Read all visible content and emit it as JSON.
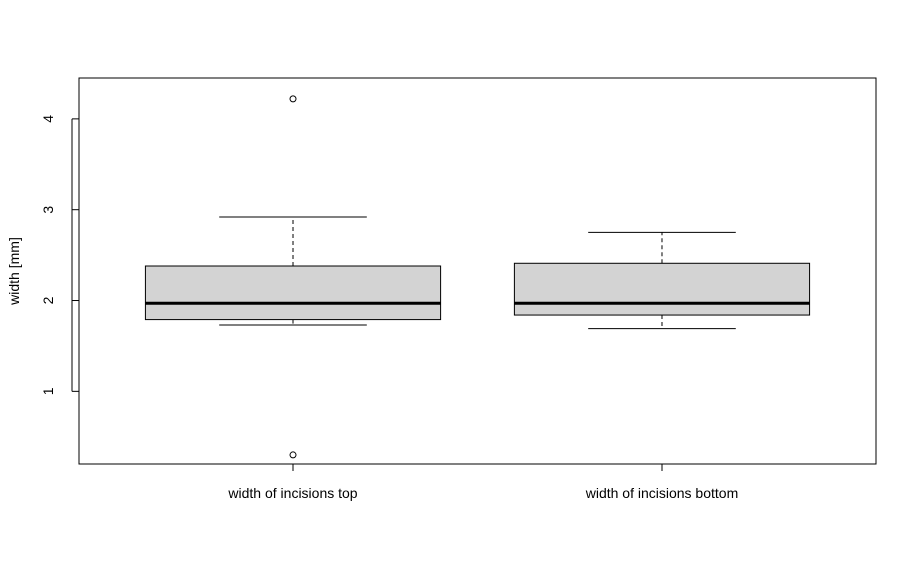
{
  "chart_data": {
    "type": "boxplot",
    "title": "",
    "xlabel": "",
    "ylabel": "width [mm]",
    "ylim": [
      0.2,
      4.45
    ],
    "yticks": [
      1,
      2,
      3,
      4
    ],
    "categories": [
      "width of incisions top",
      "width of incisions bottom"
    ],
    "series": [
      {
        "category": "width of incisions top",
        "whisker_low": 1.73,
        "q1": 1.79,
        "median": 1.97,
        "q3": 2.38,
        "whisker_high": 2.92,
        "outliers": [
          4.22,
          0.3
        ]
      },
      {
        "category": "width of incisions bottom",
        "whisker_low": 1.69,
        "q1": 1.84,
        "median": 1.97,
        "q3": 2.41,
        "whisker_high": 2.75,
        "outliers": []
      }
    ],
    "box_fill": "#d3d3d3",
    "line_color": "#000000",
    "grid": false,
    "legend": "none"
  }
}
